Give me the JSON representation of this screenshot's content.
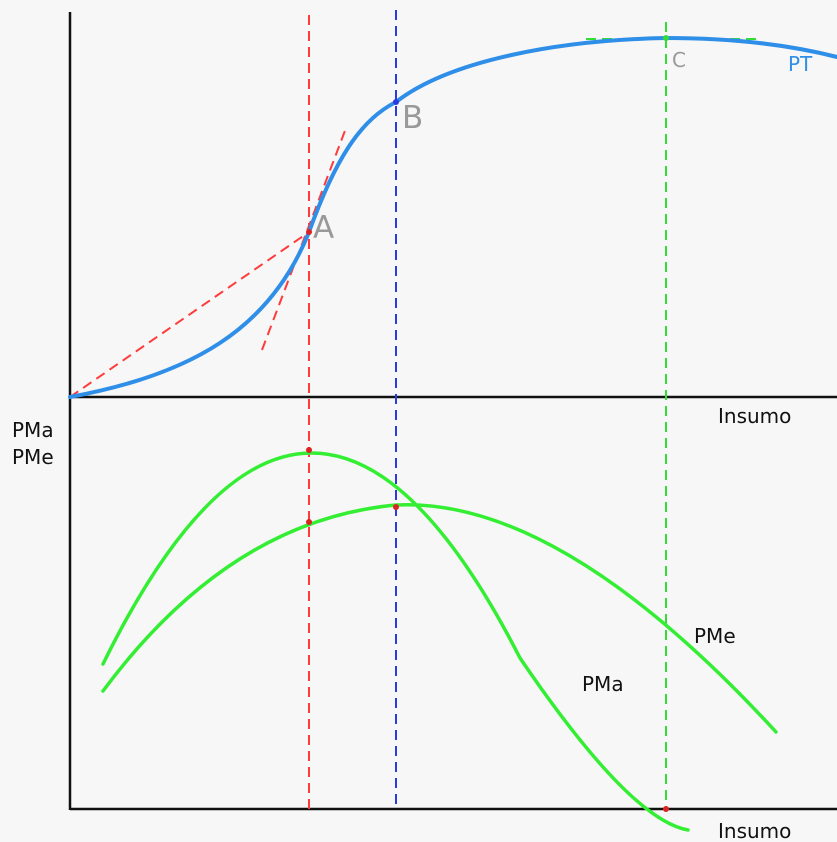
{
  "labels": {
    "point_a": "A",
    "point_b": "B",
    "point_c": "C",
    "curve_pt": "PT",
    "x_axis_top": "Insumo",
    "y_axis_bottom_line1": "PMa",
    "y_axis_bottom_line2": "PMe",
    "curve_pme": "PMe",
    "curve_pma": "PMa",
    "x_axis_bottom": "Insumo"
  },
  "colors": {
    "background": "#f7f7f7",
    "axis": "#111111",
    "pt_curve": "#2f8fe8",
    "pm_curves": "#33ee33",
    "guide_red": "#ff3b3b",
    "guide_blue": "#2b3bdd",
    "guide_green": "#33dd33",
    "point_label_gray": "#999999"
  }
}
